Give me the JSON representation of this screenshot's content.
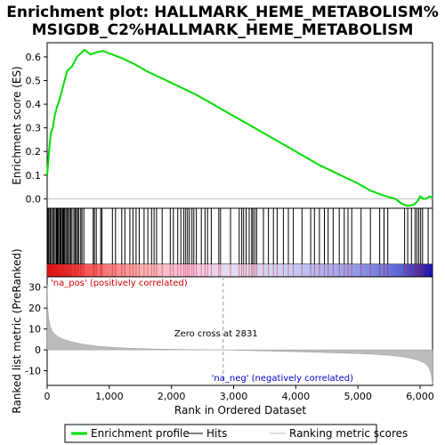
{
  "chart_data": {
    "type": "line",
    "title_line1": "Enrichment plot: HALLMARK_HEME_METABOLISM%",
    "title_line2": "MSIGDB_C2%HALLMARK_HEME_METABOLISM",
    "top_panel": {
      "ylabel": "Enrichment score (ES)",
      "ylim": [
        -0.04,
        0.66
      ],
      "yticks": [
        0.0,
        0.1,
        0.2,
        0.3,
        0.4,
        0.5,
        0.6
      ],
      "ytick_labels": [
        "0.0",
        "0.1",
        "0.2",
        "0.3",
        "0.4",
        "0.5",
        "0.6"
      ],
      "series": [
        {
          "name": "Enrichment profile",
          "color": "#00dd00",
          "x": [
            0,
            30,
            60,
            90,
            120,
            160,
            200,
            240,
            280,
            320,
            360,
            400,
            440,
            480,
            520,
            560,
            600,
            700,
            800,
            900,
            1000,
            1200,
            1400,
            1600,
            1800,
            2000,
            2200,
            2400,
            2600,
            2831,
            3000,
            3200,
            3400,
            3600,
            3800,
            4000,
            4200,
            4400,
            4600,
            4800,
            5000,
            5200,
            5400,
            5600,
            5700,
            5800,
            5900,
            5960,
            6000,
            6050,
            6100,
            6150,
            6200
          ],
          "y": [
            0.1,
            0.2,
            0.28,
            0.3,
            0.35,
            0.39,
            0.42,
            0.46,
            0.5,
            0.54,
            0.55,
            0.56,
            0.58,
            0.6,
            0.61,
            0.62,
            0.63,
            0.61,
            0.62,
            0.625,
            0.615,
            0.595,
            0.57,
            0.54,
            0.515,
            0.49,
            0.465,
            0.44,
            0.41,
            0.375,
            0.35,
            0.32,
            0.29,
            0.26,
            0.23,
            0.2,
            0.17,
            0.14,
            0.115,
            0.09,
            0.065,
            0.035,
            0.015,
            0.0,
            -0.02,
            -0.03,
            -0.025,
            -0.01,
            0.01,
            0.0,
            0.0,
            0.01,
            0.005
          ]
        }
      ]
    },
    "hits_panel": {
      "hit_positions": [
        5,
        15,
        30,
        50,
        70,
        90,
        110,
        130,
        150,
        165,
        180,
        200,
        215,
        230,
        250,
        265,
        280,
        300,
        320,
        340,
        360,
        380,
        400,
        430,
        450,
        470,
        490,
        510,
        540,
        560,
        590,
        740,
        760,
        790,
        860,
        880,
        1050,
        1100,
        1200,
        1250,
        1330,
        1380,
        1430,
        1480,
        1560,
        1620,
        1680,
        1720,
        1760,
        1850,
        1980,
        2030,
        2100,
        2150,
        2200,
        2230,
        2260,
        2290,
        2330,
        2360,
        2400,
        2480,
        2540,
        2580,
        2640,
        2760,
        2790,
        2950,
        3090,
        3130,
        3160,
        3200,
        3250,
        3290,
        3310,
        3340,
        3370,
        3480,
        3560,
        3640,
        3700,
        3800,
        3880,
        3960,
        4100,
        4240,
        4300,
        4380,
        4460,
        4520,
        4600,
        4700,
        4780,
        4840,
        4900,
        5050,
        5200,
        5350,
        5420,
        5480,
        5750,
        5800,
        5860,
        5920,
        5950,
        5980,
        6010,
        6040,
        6130
      ]
    },
    "bottom_panel": {
      "ylabel": "Ranked list metric (PreRanked)",
      "xlabel": "Rank in Ordered Dataset",
      "xlim": [
        0,
        6200
      ],
      "ylim": [
        -17,
        35
      ],
      "yticks": [
        -10,
        0,
        10,
        20,
        30
      ],
      "ytick_labels": [
        "-10",
        "0",
        "10",
        "20",
        "30"
      ],
      "xticks": [
        0,
        1000,
        2000,
        3000,
        4000,
        5000,
        6000
      ],
      "xtick_labels": [
        "0",
        "1,000",
        "2,000",
        "3,000",
        "4,000",
        "5,000",
        "6,000"
      ],
      "metric_x": [
        0,
        10,
        25,
        50,
        80,
        120,
        170,
        230,
        300,
        400,
        500,
        650,
        800,
        1000,
        1300,
        1600,
        2000,
        2400,
        2831,
        3200,
        3600,
        4000,
        4400,
        4800,
        5200,
        5500,
        5700,
        5850,
        5950,
        6050,
        6100,
        6150,
        6180,
        6200
      ],
      "metric_y": [
        31,
        20,
        15,
        11,
        9,
        7.5,
        6.5,
        5.5,
        4.7,
        3.8,
        3.1,
        2.4,
        1.8,
        1.3,
        0.8,
        0.5,
        0.25,
        0.1,
        0.0,
        -0.3,
        -0.6,
        -0.9,
        -1.2,
        -1.6,
        -2.0,
        -2.6,
        -3.2,
        -4.0,
        -4.8,
        -6.0,
        -7.0,
        -9.0,
        -12.0,
        -16.5
      ],
      "zero_cross_label": "Zero cross at 2831",
      "zero_cross": 2831,
      "pos_label": "'na_pos' (positively correlated)",
      "neg_label": "'na_neg' (negatively correlated)"
    },
    "legend": {
      "entries": [
        {
          "label": "Enrichment profile",
          "color": "#00dd00"
        },
        {
          "label": "Hits",
          "color": "#000000"
        },
        {
          "label": "Ranking metric scores",
          "color": "#bbbbbb"
        }
      ]
    }
  }
}
